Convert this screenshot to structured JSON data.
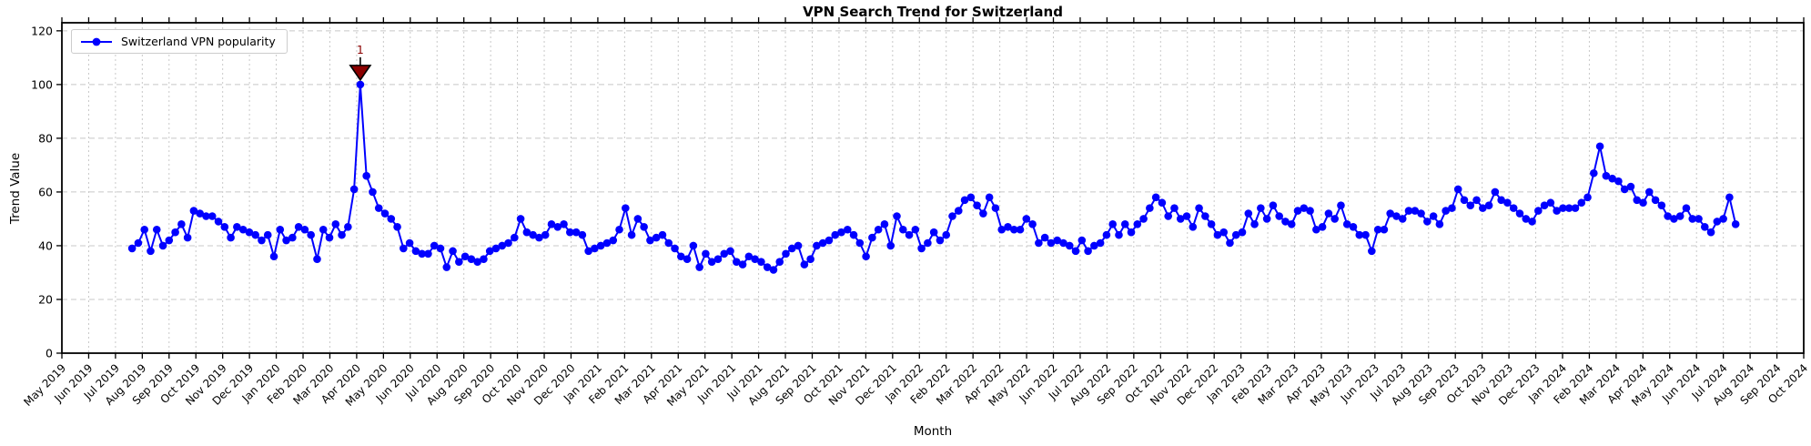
{
  "chart_data": {
    "type": "line",
    "title": "VPN Search Trend for Switzerland",
    "xlabel": "Month",
    "ylabel": "Trend Value",
    "legend": {
      "label": "Switzerland VPN popularity",
      "position": "upper left"
    },
    "grid": true,
    "marker": "circle",
    "colors": {
      "line": "#0000ff",
      "annotation": "#8b0000",
      "annotation_edge": "#000000",
      "grid": "#c8c8c8",
      "spine": "#000000",
      "legend_border": "#cccccc",
      "background": "#ffffff",
      "text": "#000000"
    },
    "ylim": [
      0,
      123
    ],
    "y_ticks": [
      0,
      20,
      40,
      60,
      80,
      100,
      120
    ],
    "x_tick_labels": [
      "May 2019",
      "Jun 2019",
      "Jul 2019",
      "Aug 2019",
      "Sep 2019",
      "Oct 2019",
      "Nov 2019",
      "Dec 2019",
      "Jan 2020",
      "Feb 2020",
      "Mar 2020",
      "Apr 2020",
      "May 2020",
      "Jun 2020",
      "Jul 2020",
      "Aug 2020",
      "Sep 2020",
      "Oct 2020",
      "Nov 2020",
      "Dec 2020",
      "Jan 2021",
      "Feb 2021",
      "Mar 2021",
      "Apr 2021",
      "May 2021",
      "Jun 2021",
      "Jul 2021",
      "Aug 2021",
      "Sep 2021",
      "Oct 2021",
      "Nov 2021",
      "Dec 2021",
      "Jan 2022",
      "Feb 2022",
      "Mar 2022",
      "Apr 2022",
      "May 2022",
      "Jun 2022",
      "Jul 2022",
      "Aug 2022",
      "Sep 2022",
      "Oct 2022",
      "Nov 2022",
      "Dec 2022",
      "Jan 2023",
      "Feb 2023",
      "Mar 2023",
      "Apr 2023",
      "May 2023",
      "Jun 2023",
      "Jul 2023",
      "Aug 2023",
      "Sep 2023",
      "Oct 2023",
      "Nov 2023",
      "Dec 2023",
      "Jan 2024",
      "Feb 2024",
      "Mar 2024",
      "Apr 2024",
      "May 2024",
      "Jun 2024",
      "Jul 2024",
      "Aug 2024",
      "Sep 2024",
      "Oct 2024"
    ],
    "series": {
      "name": "Switzerland VPN popularity",
      "frequency": "weekly",
      "start_offset_months": 2.62,
      "weeks_per_month": 4.345,
      "values": [
        39,
        41,
        46,
        38,
        46,
        40,
        42,
        45,
        48,
        43,
        53,
        52,
        51,
        51,
        49,
        47,
        43,
        47,
        46,
        45,
        44,
        42,
        44,
        36,
        46,
        42,
        43,
        47,
        46,
        44,
        35,
        46,
        43,
        48,
        44,
        47,
        61,
        100,
        66,
        60,
        54,
        52,
        50,
        47,
        39,
        41,
        38,
        37,
        37,
        40,
        39,
        32,
        38,
        34,
        36,
        35,
        34,
        35,
        38,
        39,
        40,
        41,
        43,
        50,
        45,
        44,
        43,
        44,
        48,
        47,
        48,
        45,
        45,
        44,
        38,
        39,
        40,
        41,
        42,
        46,
        54,
        44,
        50,
        47,
        42,
        43,
        44,
        41,
        39,
        36,
        35,
        40,
        32,
        37,
        34,
        35,
        37,
        38,
        34,
        33,
        36,
        35,
        34,
        32,
        31,
        34,
        37,
        39,
        40,
        33,
        35,
        40,
        41,
        42,
        44,
        45,
        46,
        44,
        41,
        36,
        43,
        46,
        48,
        40,
        51,
        46,
        44,
        46,
        39,
        41,
        45,
        42,
        44,
        51,
        53,
        57,
        58,
        55,
        52,
        58,
        54,
        46,
        47,
        46,
        46,
        50,
        48,
        41,
        43,
        41,
        42,
        41,
        40,
        38,
        42,
        38,
        40,
        41,
        44,
        48,
        44,
        48,
        45,
        48,
        50,
        54,
        58,
        56,
        51,
        54,
        50,
        51,
        47,
        54,
        51,
        48,
        44,
        45,
        41,
        44,
        45,
        52,
        48,
        54,
        50,
        55,
        51,
        49,
        48,
        53,
        54,
        53,
        46,
        47,
        52,
        50,
        55,
        48,
        47,
        44,
        44,
        38,
        46,
        46,
        52,
        51,
        50,
        53,
        53,
        52,
        49,
        51,
        48,
        53,
        54,
        61,
        57,
        55,
        57,
        54,
        55,
        60,
        57,
        56,
        54,
        52,
        50,
        49,
        53,
        55,
        56,
        53,
        54,
        54,
        54,
        56,
        58,
        67,
        77,
        66,
        65,
        64,
        61,
        62,
        57,
        56,
        60,
        57,
        55,
        51,
        50,
        51,
        54,
        50,
        50,
        47,
        45,
        49,
        50,
        58,
        48
      ]
    },
    "annotation": {
      "label": "1",
      "week_index": 37,
      "value": 100
    }
  }
}
